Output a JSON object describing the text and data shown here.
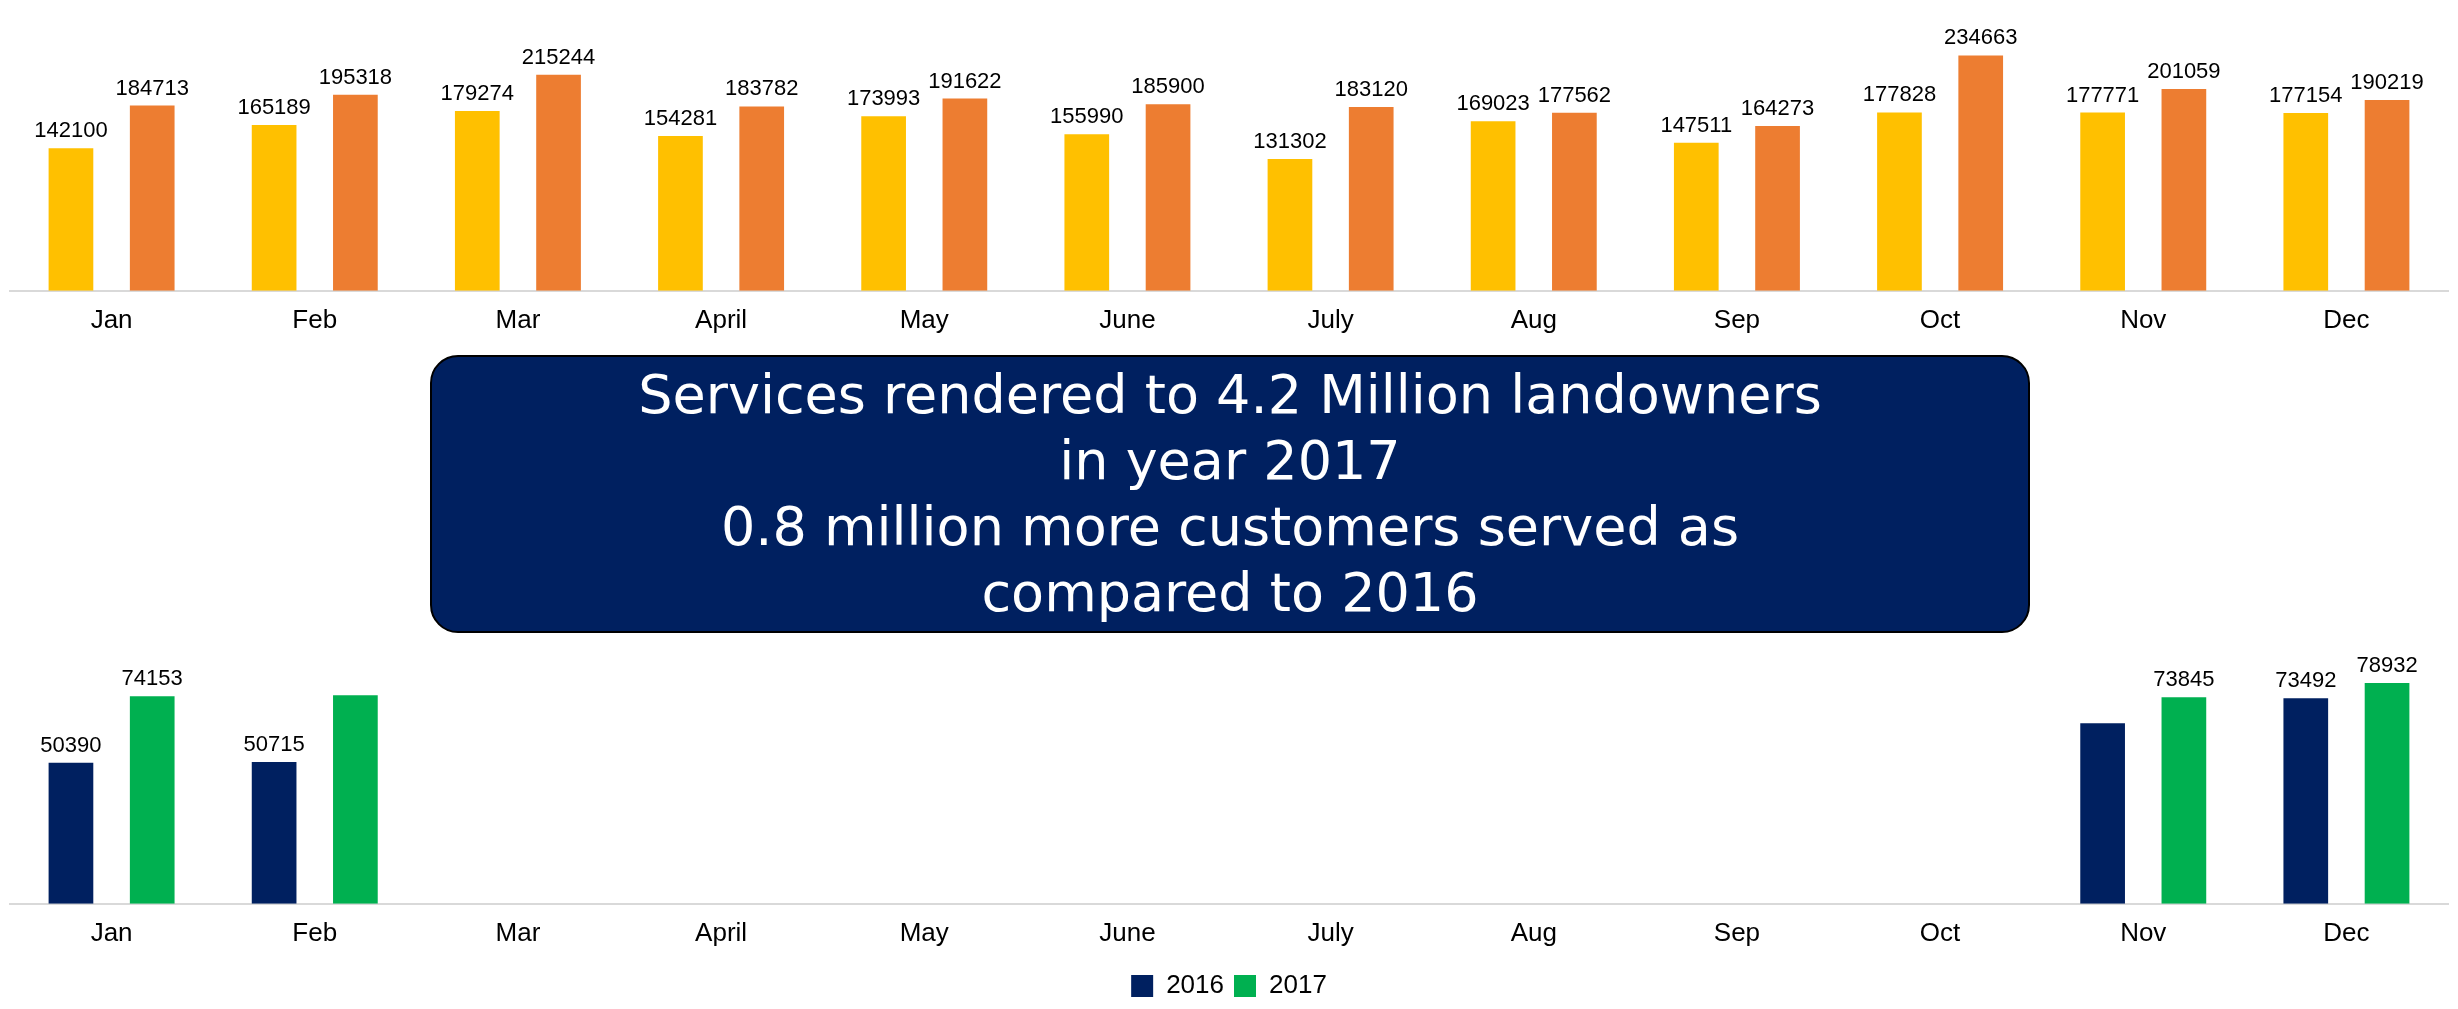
{
  "chart_data": [
    {
      "type": "bar",
      "categories": [
        "Jan",
        "Feb",
        "Mar",
        "April",
        "May",
        "June",
        "July",
        "Aug",
        "Sep",
        "Oct",
        "Nov",
        "Dec"
      ],
      "series": [
        {
          "color": "#ffc000",
          "values": [
            142100,
            165189,
            179274,
            154281,
            173993,
            155990,
            131302,
            169023,
            147511,
            177828,
            177771,
            177154
          ]
        },
        {
          "color": "#ed7d31",
          "values": [
            184713,
            195318,
            215244,
            183782,
            191622,
            185900,
            183120,
            177562,
            164273,
            234663,
            201059,
            190219
          ]
        }
      ],
      "data_labels": true,
      "grid": false,
      "annotations": [
        "Services rendered to 4.2 Million landowners in year 2017",
        "0.8 million more customers served as compared to 2016"
      ]
    },
    {
      "type": "bar",
      "categories": [
        "Jan",
        "Feb",
        "Mar",
        "April",
        "May",
        "June",
        "July",
        "Aug",
        "Sep",
        "Oct",
        "Nov",
        "Dec"
      ],
      "series": [
        {
          "name": "2016",
          "color": "#002060",
          "values": [
            50390,
            50715,
            null,
            null,
            null,
            null,
            null,
            null,
            null,
            null,
            64530,
            73492
          ],
          "value_labels": [
            "50390",
            "50715",
            null,
            null,
            null,
            null,
            null,
            null,
            null,
            null,
            null,
            "73492"
          ]
        },
        {
          "name": "2017",
          "color": "#00b050",
          "values": [
            74153,
            74570,
            null,
            null,
            null,
            null,
            null,
            null,
            null,
            null,
            73845,
            78932
          ],
          "value_labels": [
            "74153",
            null,
            null,
            null,
            null,
            null,
            null,
            null,
            null,
            null,
            "73845",
            "78932"
          ]
        }
      ],
      "grid": false,
      "legend": "bottom"
    }
  ]
}
